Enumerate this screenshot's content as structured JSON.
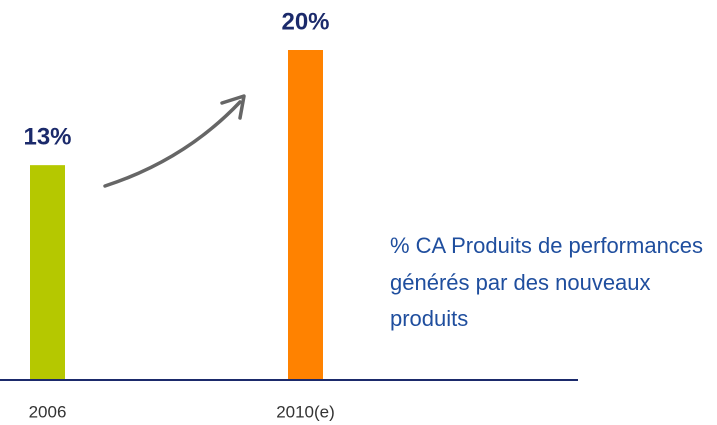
{
  "chart_data": {
    "type": "bar",
    "categories": [
      "2006",
      "2010(e)"
    ],
    "values": [
      13,
      20
    ],
    "value_labels": [
      "13%",
      "20%"
    ],
    "colors": [
      "#b5c800",
      "#ff8200"
    ],
    "annotation": "% CA Produits de performances générés par des nouveaux produits"
  }
}
